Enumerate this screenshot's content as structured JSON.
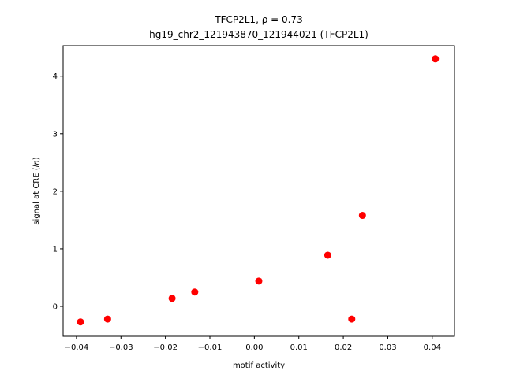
{
  "chart_data": {
    "type": "scatter",
    "title_line1": "TFCP2L1, ρ = 0.73",
    "title_line2": "hg19_chr2_121943870_121944021 (TFCP2L1)",
    "xlabel": "motif activity",
    "ylabel_prefix": "signal at CRE (",
    "ylabel_italic": "ln",
    "ylabel_suffix": ")",
    "xlim": [
      -0.043,
      0.045
    ],
    "ylim": [
      -0.52,
      4.53
    ],
    "xticks": [
      -0.04,
      -0.03,
      -0.02,
      -0.01,
      0.0,
      0.01,
      0.02,
      0.03,
      0.04
    ],
    "xtick_labels": [
      "−0.04",
      "−0.03",
      "−0.02",
      "−0.01",
      "0.00",
      "0.01",
      "0.02",
      "0.03",
      "0.04"
    ],
    "yticks": [
      0,
      1,
      2,
      3,
      4
    ],
    "ytick_labels": [
      "0",
      "1",
      "2",
      "3",
      "4"
    ],
    "marker_color": "#ff0000",
    "grid": false,
    "x": [
      -0.0391,
      -0.033,
      -0.0185,
      -0.0134,
      0.001,
      0.0165,
      0.0219,
      0.0243,
      0.0407
    ],
    "y": [
      -0.27,
      -0.22,
      0.14,
      0.25,
      0.44,
      0.89,
      -0.22,
      1.58,
      4.3
    ]
  }
}
